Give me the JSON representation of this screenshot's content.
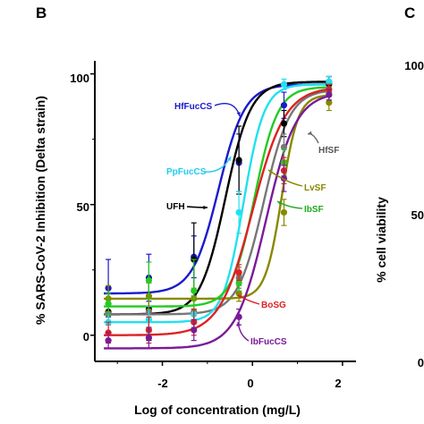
{
  "panel_b": {
    "letter": "B",
    "ylabel": "% SARS-CoV-2 Inhibition (Delta strain)",
    "xlabel": "Log of concentration (mg/L)",
    "yticks": [
      "0",
      "50",
      "100"
    ],
    "xticks": [
      "-2",
      "0",
      "2"
    ]
  },
  "panel_c": {
    "letter": "C",
    "ylabel": "% cell viability",
    "yticks": [
      "100",
      "50",
      "0"
    ]
  },
  "chart_data": [
    {
      "type": "line",
      "xlabel": "Log of concentration (mg/L)",
      "ylabel": "% SARS-CoV-2 Inhibition (Delta strain)",
      "xlim": [
        -3.5,
        2.3
      ],
      "ylim": [
        -10,
        105
      ],
      "grid": false,
      "series": [
        {
          "name": "HfFucCS",
          "color": "#1a1acc",
          "bottom": 16,
          "top": 96,
          "logIC50": -0.75,
          "hill": 1.5,
          "x": [
            -3.2,
            -2.3,
            -1.3,
            -0.3,
            0.7,
            1.7
          ],
          "y": [
            18,
            22,
            30,
            66,
            88,
            97
          ],
          "err": [
            11,
            9,
            8,
            11,
            5,
            2
          ]
        },
        {
          "name": "UFH",
          "color": "#000000",
          "bottom": 8,
          "top": 97,
          "logIC50": -0.6,
          "hill": 1.55,
          "x": [
            -3.2,
            -2.3,
            -1.3,
            -0.3,
            0.7,
            1.7
          ],
          "y": [
            9,
            10,
            29,
            67,
            81,
            96
          ],
          "err": [
            5,
            12,
            14,
            13,
            5,
            3
          ]
        },
        {
          "name": "HfSF",
          "color": "#777777",
          "bottom": 8,
          "top": 94,
          "logIC50": 0.25,
          "hill": 1.5,
          "x": [
            -3.2,
            -2.3,
            -1.3,
            -0.3,
            0.7,
            1.7
          ],
          "y": [
            8,
            9,
            9,
            22,
            72,
            92
          ],
          "err": [
            4,
            6,
            6,
            4,
            5,
            3
          ]
        },
        {
          "name": "PpFucCS",
          "color": "#22e0f0",
          "bottom": 5,
          "top": 96,
          "logIC50": -0.2,
          "hill": 1.9,
          "x": [
            -3.2,
            -2.3,
            -1.3,
            -0.3,
            0.7,
            1.7
          ],
          "y": [
            5,
            6,
            8,
            47,
            96,
            97
          ],
          "err": [
            4,
            5,
            6,
            8,
            2,
            2
          ]
        },
        {
          "name": "LvSF",
          "color": "#888800",
          "bottom": 14,
          "top": 92,
          "logIC50": 0.65,
          "hill": 2.4,
          "x": [
            -3.2,
            -2.3,
            -1.3,
            -0.3,
            0.7,
            1.7
          ],
          "y": [
            14,
            15,
            14,
            16,
            47,
            89
          ],
          "err": [
            5,
            5,
            4,
            3,
            5,
            3
          ]
        },
        {
          "name": "IbSF",
          "color": "#22cc22",
          "bottom": 11,
          "top": 95,
          "logIC50": 0.05,
          "hill": 1.7,
          "x": [
            -3.2,
            -2.3,
            -1.3,
            -0.3,
            0.7,
            1.7
          ],
          "y": [
            12,
            21,
            17,
            20,
            66,
            93
          ],
          "err": [
            4,
            7,
            12,
            3,
            5,
            3
          ]
        },
        {
          "name": "BoSG",
          "color": "#dd2222",
          "bottom": 0,
          "top": 95,
          "logIC50": 0.0,
          "hill": 1.2,
          "x": [
            -3.2,
            -2.3,
            -1.3,
            -0.3,
            0.7,
            1.7
          ],
          "y": [
            1,
            2,
            5,
            24,
            63,
            94
          ],
          "err": [
            4,
            5,
            5,
            3,
            5,
            2
          ]
        },
        {
          "name": "IbFucCS",
          "color": "#7a1a99",
          "bottom": -5,
          "top": 93,
          "logIC50": 0.3,
          "hill": 1.3,
          "x": [
            -3.2,
            -2.3,
            -1.3,
            -0.3,
            0.7,
            1.7
          ],
          "y": [
            -2,
            -1,
            2,
            7,
            60,
            92
          ],
          "err": [
            3,
            4,
            4,
            3,
            5,
            2
          ]
        }
      ],
      "annotations": [
        {
          "text": "HfFucCS",
          "color": "#1a1acc"
        },
        {
          "text": "HfSF",
          "color": "#555555"
        },
        {
          "text": "PpFucCS",
          "color": "#22ccee"
        },
        {
          "text": "LvSF",
          "color": "#888800"
        },
        {
          "text": "IbSF",
          "color": "#22aa22"
        },
        {
          "text": "UFH",
          "color": "#000000"
        },
        {
          "text": "BoSG",
          "color": "#dd2222"
        },
        {
          "text": "IbFucCS",
          "color": "#7a1a99"
        }
      ]
    }
  ]
}
